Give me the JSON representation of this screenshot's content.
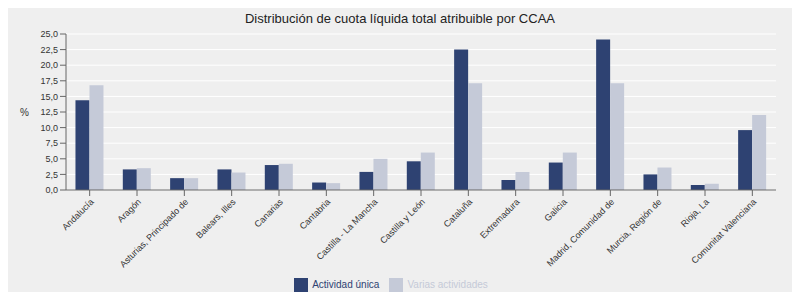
{
  "chart_data": {
    "type": "bar",
    "title": "Distribución de cuota líquida total atribuible por CCAA",
    "categories": [
      "Andalucía",
      "Aragón",
      "Asturias, Principado de",
      "Balears, Illes",
      "Canarias",
      "Cantabria",
      "Castilla - La Mancha",
      "Castilla y León",
      "Cataluña",
      "Extremadura",
      "Galicia",
      "Madrid, Comunidad de",
      "Murcia, Región de",
      "Rioja, La",
      "Comunitat Valenciana"
    ],
    "series": [
      {
        "name": "Actividad única",
        "color": "#2E4272",
        "values": [
          14.4,
          3.3,
          1.9,
          3.3,
          4.0,
          1.2,
          2.9,
          4.6,
          22.5,
          1.6,
          4.4,
          24.1,
          2.5,
          0.8,
          9.6
        ]
      },
      {
        "name": "Varias actividades",
        "color": "#C5CAD8",
        "values": [
          16.8,
          3.5,
          1.9,
          2.8,
          4.2,
          1.1,
          5.0,
          6.0,
          17.1,
          2.9,
          6.0,
          17.1,
          3.6,
          1.0,
          12.0
        ]
      }
    ],
    "ylabel": "%",
    "ylim": [
      0,
      25
    ],
    "yticks": [
      {
        "value": 0.0,
        "label": "0,0"
      },
      {
        "value": 2.5,
        "label": "2,5"
      },
      {
        "value": 5.0,
        "label": "5,0"
      },
      {
        "value": 7.5,
        "label": "7,5"
      },
      {
        "value": 10.0,
        "label": "10,0"
      },
      {
        "value": 12.5,
        "label": "12,5"
      },
      {
        "value": 15.0,
        "label": "15,0"
      },
      {
        "value": 17.5,
        "label": "17,5"
      },
      {
        "value": 20.0,
        "label": "20,0"
      },
      {
        "value": 22.5,
        "label": "22,5"
      },
      {
        "value": 25.0,
        "label": "25,0"
      }
    ],
    "grid": true,
    "legend": "bottom"
  }
}
